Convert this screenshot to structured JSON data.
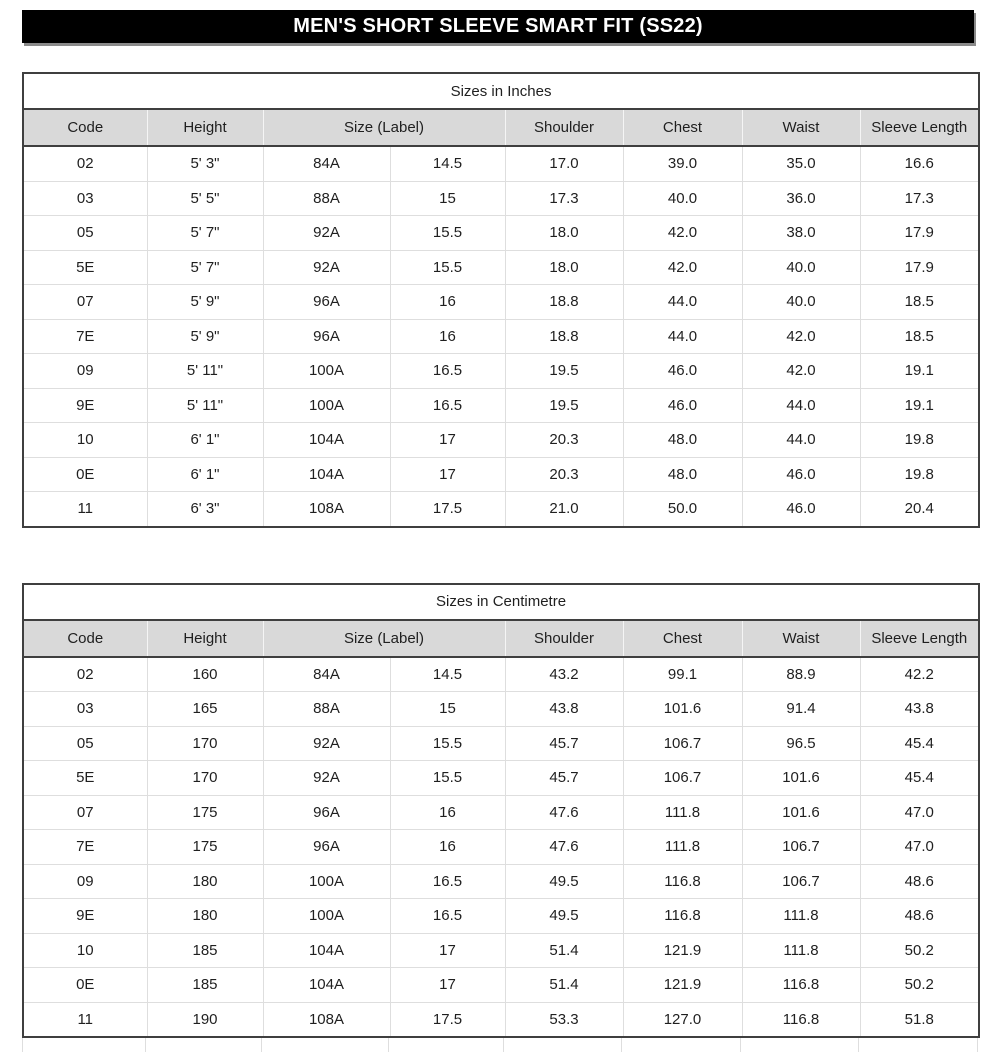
{
  "page": {
    "title": "MEN'S SHORT SLEEVE SMART FIT (SS22)"
  },
  "colors": {
    "banner_bg": "#000000",
    "banner_text": "#ffffff",
    "header_row_bg": "#d9d9d9",
    "outer_border": "#3f3f3f",
    "grid_line": "#dedede"
  },
  "header_cells": [
    {
      "label": "Code",
      "span": 1
    },
    {
      "label": "Height",
      "span": 1
    },
    {
      "label": "Size (Label)",
      "span": 2
    },
    {
      "label": "Shoulder",
      "span": 1
    },
    {
      "label": "Chest",
      "span": 1
    },
    {
      "label": "Waist",
      "span": 1
    },
    {
      "label": "Sleeve Length",
      "span": 1
    }
  ],
  "tables": [
    {
      "title": "Sizes in Inches",
      "rows": [
        [
          "02",
          "5' 3\"",
          "84A",
          "14.5",
          "17.0",
          "39.0",
          "35.0",
          "16.6"
        ],
        [
          "03",
          "5' 5\"",
          "88A",
          "15",
          "17.3",
          "40.0",
          "36.0",
          "17.3"
        ],
        [
          "05",
          "5' 7\"",
          "92A",
          "15.5",
          "18.0",
          "42.0",
          "38.0",
          "17.9"
        ],
        [
          "5E",
          "5' 7\"",
          "92A",
          "15.5",
          "18.0",
          "42.0",
          "40.0",
          "17.9"
        ],
        [
          "07",
          "5' 9\"",
          "96A",
          "16",
          "18.8",
          "44.0",
          "40.0",
          "18.5"
        ],
        [
          "7E",
          "5' 9\"",
          "96A",
          "16",
          "18.8",
          "44.0",
          "42.0",
          "18.5"
        ],
        [
          "09",
          "5' 11\"",
          "100A",
          "16.5",
          "19.5",
          "46.0",
          "42.0",
          "19.1"
        ],
        [
          "9E",
          "5' 11\"",
          "100A",
          "16.5",
          "19.5",
          "46.0",
          "44.0",
          "19.1"
        ],
        [
          "10",
          "6' 1\"",
          "104A",
          "17",
          "20.3",
          "48.0",
          "44.0",
          "19.8"
        ],
        [
          "0E",
          "6' 1\"",
          "104A",
          "17",
          "20.3",
          "48.0",
          "46.0",
          "19.8"
        ],
        [
          "11",
          "6' 3\"",
          "108A",
          "17.5",
          "21.0",
          "50.0",
          "46.0",
          "20.4"
        ]
      ]
    },
    {
      "title": "Sizes in Centimetre",
      "rows": [
        [
          "02",
          "160",
          "84A",
          "14.5",
          "43.2",
          "99.1",
          "88.9",
          "42.2"
        ],
        [
          "03",
          "165",
          "88A",
          "15",
          "43.8",
          "101.6",
          "91.4",
          "43.8"
        ],
        [
          "05",
          "170",
          "92A",
          "15.5",
          "45.7",
          "106.7",
          "96.5",
          "45.4"
        ],
        [
          "5E",
          "170",
          "92A",
          "15.5",
          "45.7",
          "106.7",
          "101.6",
          "45.4"
        ],
        [
          "07",
          "175",
          "96A",
          "16",
          "47.6",
          "111.8",
          "101.6",
          "47.0"
        ],
        [
          "7E",
          "175",
          "96A",
          "16",
          "47.6",
          "111.8",
          "106.7",
          "47.0"
        ],
        [
          "09",
          "180",
          "100A",
          "16.5",
          "49.5",
          "116.8",
          "106.7",
          "48.6"
        ],
        [
          "9E",
          "180",
          "100A",
          "16.5",
          "49.5",
          "116.8",
          "111.8",
          "48.6"
        ],
        [
          "10",
          "185",
          "104A",
          "17",
          "51.4",
          "121.9",
          "111.8",
          "50.2"
        ],
        [
          "0E",
          "185",
          "104A",
          "17",
          "51.4",
          "121.9",
          "116.8",
          "50.2"
        ],
        [
          "11",
          "190",
          "108A",
          "17.5",
          "53.3",
          "127.0",
          "116.8",
          "51.8"
        ]
      ]
    }
  ]
}
